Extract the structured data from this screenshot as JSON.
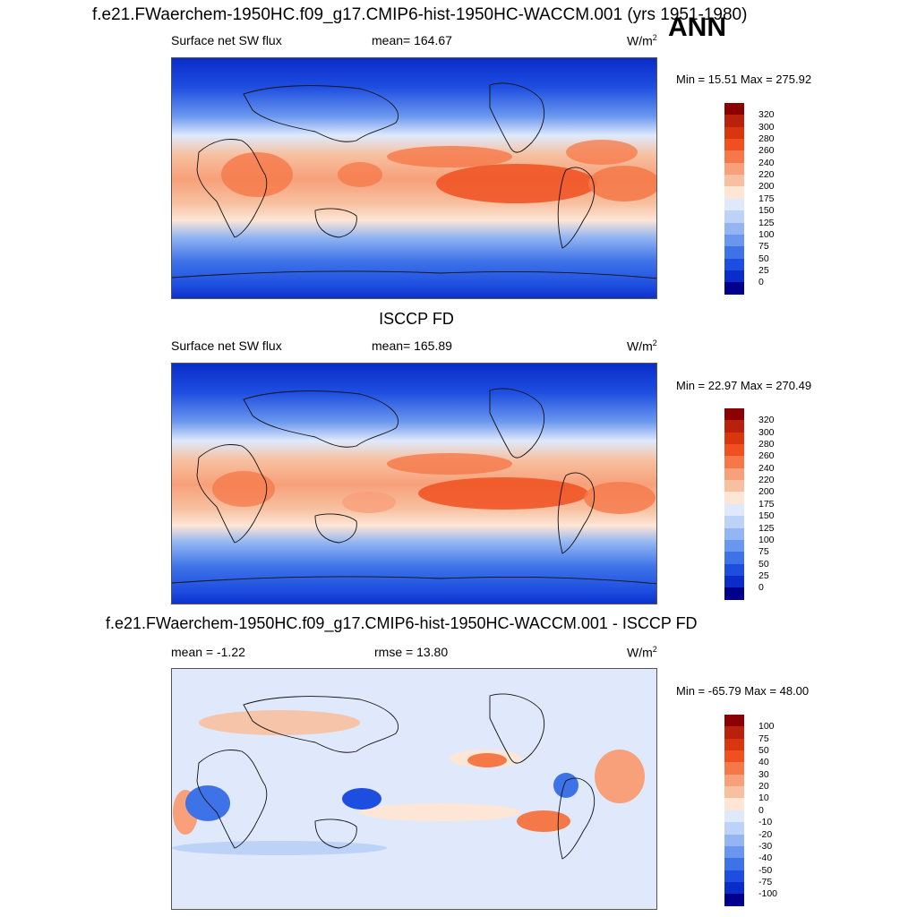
{
  "figure": {
    "title": "f.e21.FWaerchem-1950HC.f09_g17.CMIP6-hist-1950HC-WACCM.001 (yrs 1951-1980)",
    "season": "ANN"
  },
  "panels": [
    {
      "variable": "Surface net SW flux",
      "stat": "mean= 164.67",
      "units_base": "W/m",
      "units_exp": "2",
      "minmax": "Min =  15.51 Max = 275.92",
      "levels": [
        "320",
        "300",
        "280",
        "260",
        "240",
        "220",
        "200",
        "175",
        "150",
        "125",
        "100",
        "75",
        "50",
        "25",
        "0"
      ],
      "colors": [
        "#8b0000",
        "#b8220a",
        "#d9360e",
        "#f05020",
        "#f57848",
        "#f7a07a",
        "#f7c0a0",
        "#fde6d6",
        "#dfe9fb",
        "#bcd2f7",
        "#93b5f2",
        "#6a97ee",
        "#3e73e8",
        "#1e4ee0",
        "#0a2cc8",
        "#00008c"
      ]
    },
    {
      "title": "ISCCP FD",
      "variable": "Surface net SW flux",
      "stat": "mean= 165.89",
      "units_base": "W/m",
      "units_exp": "2",
      "minmax": "Min =  22.97 Max = 270.49",
      "levels": [
        "320",
        "300",
        "280",
        "260",
        "240",
        "220",
        "200",
        "175",
        "150",
        "125",
        "100",
        "75",
        "50",
        "25",
        "0"
      ],
      "colors": [
        "#8b0000",
        "#b8220a",
        "#d9360e",
        "#f05020",
        "#f57848",
        "#f7a07a",
        "#f7c0a0",
        "#fde6d6",
        "#dfe9fb",
        "#bcd2f7",
        "#93b5f2",
        "#6a97ee",
        "#3e73e8",
        "#1e4ee0",
        "#0a2cc8",
        "#00008c"
      ]
    },
    {
      "title": "f.e21.FWaerchem-1950HC.f09_g17.CMIP6-hist-1950HC-WACCM.001 - ISCCP FD",
      "stat_left": "mean =  -1.22",
      "stat": "rmse =  13.80",
      "units_base": "W/m",
      "units_exp": "2",
      "minmax": "Min = -65.79 Max =  48.00",
      "levels": [
        "100",
        "75",
        "50",
        "40",
        "30",
        "20",
        "10",
        "0",
        "-10",
        "-20",
        "-30",
        "-40",
        "-50",
        "-75",
        "-100"
      ],
      "colors": [
        "#8b0000",
        "#b8220a",
        "#d9360e",
        "#f05020",
        "#f57848",
        "#f7a07a",
        "#f7c0a0",
        "#fde6d6",
        "#dfe9fb",
        "#bcd2f7",
        "#93b5f2",
        "#6a97ee",
        "#3e73e8",
        "#1e4ee0",
        "#0a2cc8",
        "#00008c"
      ]
    }
  ]
}
